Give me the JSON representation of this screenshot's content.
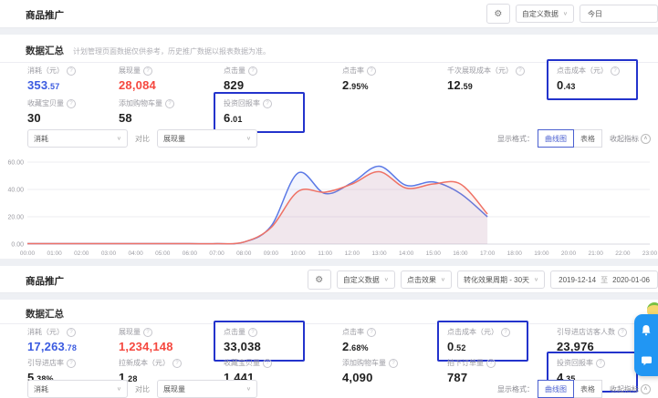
{
  "colors": {
    "accent_blue": "#3b5be0",
    "accent_red": "#f5483f",
    "highlight_box_border": "#2333cc",
    "chart_line_blue": "#5b79e6",
    "chart_line_red": "#ef7265",
    "widget_blue": "#2196f3"
  },
  "icons": {
    "gear": "⚙",
    "chevron_down": "∨",
    "chevron_up": "∧"
  },
  "panel1": {
    "title": "商品推广",
    "controls": {
      "custom_data": "自定义数据",
      "date": "今日"
    },
    "section_title": "数据汇总",
    "section_subtitle": "计划管理页面数据仅供参考，历史推广数据以报表数据为准。",
    "metrics_row1": [
      {
        "label": "消耗（元）",
        "value": "353.57",
        "main": "353",
        "sub": ".57",
        "color_class": "v-blue",
        "box": ""
      },
      {
        "label": "展现量",
        "value": "28,084",
        "main": "28,084",
        "sub": "",
        "color_class": "v-red",
        "box": ""
      },
      {
        "label": "点击量",
        "value": "829",
        "main": "829",
        "sub": "",
        "color_class": "",
        "box": ""
      },
      {
        "label": "点击率",
        "value": "2.95%",
        "main": "2",
        "sub": ".95%",
        "color_class": "",
        "box": ""
      },
      {
        "label": "千次展现成本（元）",
        "value": "12.59",
        "main": "12",
        "sub": ".59",
        "color_class": "",
        "box": ""
      },
      {
        "label": "点击成本（元）",
        "value": "0.43",
        "main": "0",
        "sub": ".43",
        "color_class": "",
        "box": "boxed"
      }
    ],
    "metrics_row2": [
      {
        "label": "收藏宝贝量",
        "value": "30",
        "main": "30",
        "sub": "",
        "color_class": "",
        "box": ""
      },
      {
        "label": "添加购物车量",
        "value": "58",
        "main": "58",
        "sub": "",
        "color_class": "",
        "box": ""
      },
      {
        "label": "投资回报率",
        "value": "6.01",
        "main": "6",
        "sub": ".01",
        "color_class": "",
        "box": "boxed"
      }
    ],
    "compare": {
      "metric1": "消耗",
      "vs_label": "对比",
      "metric2": "展现量"
    },
    "display_format": {
      "label": "显示格式：",
      "option1": "曲线图",
      "option2": "表格",
      "collapse": "收起指标"
    }
  },
  "chart_data": {
    "type": "line",
    "title": "",
    "xlabel": "",
    "ylabel": "",
    "x": [
      "00:00",
      "01:00",
      "02:00",
      "03:00",
      "04:00",
      "05:00",
      "06:00",
      "07:00",
      "08:00",
      "09:00",
      "10:00",
      "11:00",
      "12:00",
      "13:00",
      "14:00",
      "15:00",
      "16:00",
      "17:00",
      "18:00",
      "19:00",
      "20:00",
      "21:00",
      "22:00",
      "23:00"
    ],
    "ylim": [
      0,
      60
    ],
    "ytick_labels": [
      "60.00",
      "40.00",
      "20.00",
      "0.00"
    ],
    "grid": "horizontal",
    "legend_position": "none",
    "series": [
      {
        "name": "消耗",
        "color": "#5b79e6",
        "fill": "rgba(91,121,230,0.08)",
        "values": [
          0.3,
          0.3,
          0.3,
          0.3,
          0.3,
          0.3,
          0.3,
          0.3,
          1.5,
          13,
          52,
          37,
          45,
          57,
          43,
          45.5,
          37,
          20
        ]
      },
      {
        "name": "展现量",
        "color": "#ef7265",
        "fill": "rgba(239,114,101,0.10)",
        "values": [
          0.3,
          0.3,
          0.3,
          0.3,
          0.3,
          0.3,
          0.3,
          0.3,
          1.5,
          12,
          38.5,
          38,
          44,
          53,
          41,
          44,
          44,
          22
        ]
      }
    ]
  },
  "panel2": {
    "title": "商品推广",
    "controls": {
      "custom_data": "自定义数据",
      "effect_type": "点击效果",
      "conversion_cycle": "转化效果周期 - 30天",
      "date_start": "2019-12-14",
      "date_separator": "至",
      "date_end": "2020-01-06"
    },
    "section_title": "数据汇总",
    "metrics_row1": [
      {
        "label": "消耗（元）",
        "value": "17,263.78",
        "main": "17,263",
        "sub": ".78",
        "color_class": "v-blue",
        "box": ""
      },
      {
        "label": "展现量",
        "value": "1,234,148",
        "main": "1,234,148",
        "sub": "",
        "color_class": "v-red",
        "box": ""
      },
      {
        "label": "点击量",
        "value": "33,038",
        "main": "33,038",
        "sub": "",
        "color_class": "",
        "box": "boxed"
      },
      {
        "label": "点击率",
        "value": "2.68%",
        "main": "2",
        "sub": ".68%",
        "color_class": "",
        "box": ""
      },
      {
        "label": "点击成本（元）",
        "value": "0.52",
        "main": "0",
        "sub": ".52",
        "color_class": "",
        "box": "boxed"
      },
      {
        "label": "引导进店访客人数",
        "value": "23,976",
        "main": "23,976",
        "sub": "",
        "color_class": "",
        "box": ""
      }
    ],
    "metrics_row2": [
      {
        "label": "引导进店率",
        "value": "5.38%",
        "main": "5",
        "sub": ".38%",
        "color_class": "",
        "box": ""
      },
      {
        "label": "拉新成本（元）",
        "value": "1.28",
        "main": "1",
        "sub": ".28",
        "color_class": "",
        "box": ""
      },
      {
        "label": "收藏宝贝量",
        "value": "1,441",
        "main": "1,441",
        "sub": "",
        "color_class": "",
        "box": ""
      },
      {
        "label": "添加购物车量",
        "value": "4,090",
        "main": "4,090",
        "sub": "",
        "color_class": "",
        "box": ""
      },
      {
        "label": "拍下订单量",
        "value": "787",
        "main": "787",
        "sub": "",
        "color_class": "",
        "box": ""
      },
      {
        "label": "投资回报率",
        "value": "4.35",
        "main": "4",
        "sub": ".35",
        "color_class": "",
        "box": "boxed"
      }
    ],
    "compare": {
      "metric1": "消耗",
      "vs_label": "对比",
      "metric2": "展现量"
    },
    "display_format": {
      "label": "显示格式：",
      "option1": "曲线图",
      "option2": "表格",
      "collapse": "收起指标"
    }
  }
}
